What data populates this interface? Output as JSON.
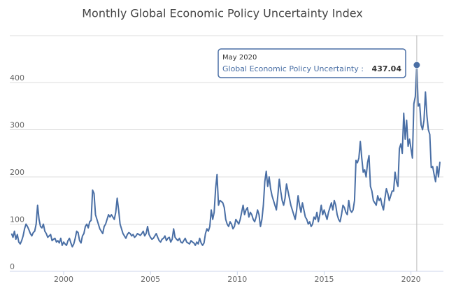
{
  "chart_data": {
    "type": "line",
    "title": "Monthly Global Economic Policy Uncertainty Index",
    "color": "#4a6fa5",
    "x": [
      "1997-01",
      "1997-02",
      "1997-03",
      "1997-04",
      "1997-05",
      "1997-06",
      "1997-07",
      "1997-08",
      "1997-09",
      "1997-10",
      "1997-11",
      "1997-12",
      "1998-01",
      "1998-02",
      "1998-03",
      "1998-04",
      "1998-05",
      "1998-06",
      "1998-07",
      "1998-08",
      "1998-09",
      "1998-10",
      "1998-11",
      "1998-12",
      "1999-01",
      "1999-02",
      "1999-03",
      "1999-04",
      "1999-05",
      "1999-06",
      "1999-07",
      "1999-08",
      "1999-09",
      "1999-10",
      "1999-11",
      "1999-12",
      "2000-01",
      "2000-02",
      "2000-03",
      "2000-04",
      "2000-05",
      "2000-06",
      "2000-07",
      "2000-08",
      "2000-09",
      "2000-10",
      "2000-11",
      "2000-12",
      "2001-01",
      "2001-02",
      "2001-03",
      "2001-04",
      "2001-05",
      "2001-06",
      "2001-07",
      "2001-08",
      "2001-09",
      "2001-10",
      "2001-11",
      "2001-12",
      "2002-01",
      "2002-02",
      "2002-03",
      "2002-04",
      "2002-05",
      "2002-06",
      "2002-07",
      "2002-08",
      "2002-09",
      "2002-10",
      "2002-11",
      "2002-12",
      "2003-01",
      "2003-02",
      "2003-03",
      "2003-04",
      "2003-05",
      "2003-06",
      "2003-07",
      "2003-08",
      "2003-09",
      "2003-10",
      "2003-11",
      "2003-12",
      "2004-01",
      "2004-02",
      "2004-03",
      "2004-04",
      "2004-05",
      "2004-06",
      "2004-07",
      "2004-08",
      "2004-09",
      "2004-10",
      "2004-11",
      "2004-12",
      "2005-01",
      "2005-02",
      "2005-03",
      "2005-04",
      "2005-05",
      "2005-06",
      "2005-07",
      "2005-08",
      "2005-09",
      "2005-10",
      "2005-11",
      "2005-12",
      "2006-01",
      "2006-02",
      "2006-03",
      "2006-04",
      "2006-05",
      "2006-06",
      "2006-07",
      "2006-08",
      "2006-09",
      "2006-10",
      "2006-11",
      "2006-12",
      "2007-01",
      "2007-02",
      "2007-03",
      "2007-04",
      "2007-05",
      "2007-06",
      "2007-07",
      "2007-08",
      "2007-09",
      "2007-10",
      "2007-11",
      "2007-12",
      "2008-01",
      "2008-02",
      "2008-03",
      "2008-04",
      "2008-05",
      "2008-06",
      "2008-07",
      "2008-08",
      "2008-09",
      "2008-10",
      "2008-11",
      "2008-12",
      "2009-01",
      "2009-02",
      "2009-03",
      "2009-04",
      "2009-05",
      "2009-06",
      "2009-07",
      "2009-08",
      "2009-09",
      "2009-10",
      "2009-11",
      "2009-12",
      "2010-01",
      "2010-02",
      "2010-03",
      "2010-04",
      "2010-05",
      "2010-06",
      "2010-07",
      "2010-08",
      "2010-09",
      "2010-10",
      "2010-11",
      "2010-12",
      "2011-01",
      "2011-02",
      "2011-03",
      "2011-04",
      "2011-05",
      "2011-06",
      "2011-07",
      "2011-08",
      "2011-09",
      "2011-10",
      "2011-11",
      "2011-12",
      "2012-01",
      "2012-02",
      "2012-03",
      "2012-04",
      "2012-05",
      "2012-06",
      "2012-07",
      "2012-08",
      "2012-09",
      "2012-10",
      "2012-11",
      "2012-12",
      "2013-01",
      "2013-02",
      "2013-03",
      "2013-04",
      "2013-05",
      "2013-06",
      "2013-07",
      "2013-08",
      "2013-09",
      "2013-10",
      "2013-11",
      "2013-12",
      "2014-01",
      "2014-02",
      "2014-03",
      "2014-04",
      "2014-05",
      "2014-06",
      "2014-07",
      "2014-08",
      "2014-09",
      "2014-10",
      "2014-11",
      "2014-12",
      "2015-01",
      "2015-02",
      "2015-03",
      "2015-04",
      "2015-05",
      "2015-06",
      "2015-07",
      "2015-08",
      "2015-09",
      "2015-10",
      "2015-11",
      "2015-12",
      "2016-01",
      "2016-02",
      "2016-03",
      "2016-04",
      "2016-05",
      "2016-06",
      "2016-07",
      "2016-08",
      "2016-09",
      "2016-10",
      "2016-11",
      "2016-12",
      "2017-01",
      "2017-02",
      "2017-03",
      "2017-04",
      "2017-05",
      "2017-06",
      "2017-07",
      "2017-08",
      "2017-09",
      "2017-10",
      "2017-11",
      "2017-12",
      "2018-01",
      "2018-02",
      "2018-03",
      "2018-04",
      "2018-05",
      "2018-06",
      "2018-07",
      "2018-08",
      "2018-09",
      "2018-10",
      "2018-11",
      "2018-12",
      "2019-01",
      "2019-02",
      "2019-03",
      "2019-04",
      "2019-05",
      "2019-06",
      "2019-07",
      "2019-08",
      "2019-09",
      "2019-10",
      "2019-11",
      "2019-12",
      "2020-01",
      "2020-02",
      "2020-03",
      "2020-04",
      "2020-05",
      "2020-06",
      "2020-07",
      "2020-08",
      "2020-09",
      "2020-10",
      "2020-11",
      "2020-12",
      "2021-01",
      "2021-02",
      "2021-03",
      "2021-04",
      "2021-05",
      "2021-06",
      "2021-07",
      "2021-08",
      "2021-09"
    ],
    "values": [
      80,
      72,
      85,
      68,
      78,
      62,
      58,
      65,
      75,
      90,
      100,
      95,
      88,
      80,
      75,
      82,
      85,
      100,
      140,
      110,
      95,
      92,
      100,
      85,
      80,
      72,
      75,
      78,
      65,
      68,
      70,
      62,
      65,
      60,
      70,
      55,
      62,
      58,
      55,
      65,
      70,
      60,
      52,
      58,
      70,
      85,
      82,
      65,
      60,
      75,
      80,
      95,
      100,
      92,
      105,
      108,
      172,
      165,
      120,
      110,
      100,
      90,
      85,
      80,
      95,
      100,
      110,
      120,
      115,
      120,
      115,
      110,
      125,
      155,
      130,
      100,
      90,
      80,
      75,
      70,
      78,
      82,
      80,
      75,
      78,
      72,
      75,
      80,
      78,
      76,
      80,
      85,
      75,
      80,
      95,
      78,
      72,
      68,
      70,
      75,
      80,
      72,
      65,
      62,
      68,
      70,
      75,
      65,
      70,
      72,
      62,
      68,
      90,
      72,
      68,
      65,
      70,
      62,
      60,
      65,
      70,
      62,
      60,
      58,
      65,
      62,
      60,
      55,
      62,
      58,
      70,
      60,
      55,
      60,
      80,
      90,
      85,
      95,
      130,
      110,
      125,
      175,
      205,
      140,
      150,
      148,
      145,
      135,
      110,
      100,
      95,
      105,
      100,
      90,
      95,
      110,
      105,
      100,
      110,
      125,
      140,
      120,
      130,
      135,
      115,
      125,
      120,
      110,
      105,
      115,
      130,
      120,
      95,
      110,
      140,
      190,
      212,
      180,
      200,
      175,
      160,
      150,
      140,
      130,
      160,
      195,
      170,
      150,
      140,
      155,
      185,
      170,
      155,
      140,
      130,
      120,
      110,
      130,
      160,
      140,
      125,
      145,
      130,
      115,
      110,
      100,
      105,
      95,
      100,
      115,
      110,
      125,
      105,
      120,
      140,
      120,
      130,
      120,
      110,
      125,
      135,
      145,
      130,
      150,
      140,
      120,
      110,
      105,
      120,
      140,
      135,
      125,
      120,
      150,
      130,
      125,
      130,
      150,
      235,
      230,
      240,
      275,
      240,
      210,
      215,
      200,
      230,
      245,
      180,
      170,
      150,
      145,
      140,
      160,
      150,
      155,
      140,
      130,
      155,
      175,
      165,
      150,
      160,
      170,
      170,
      210,
      190,
      180,
      260,
      270,
      250,
      335,
      280,
      320,
      265,
      280,
      260,
      240,
      355,
      370,
      437.04,
      350,
      355,
      310,
      300,
      320,
      380,
      330,
      300,
      290,
      220,
      222,
      205,
      190,
      222,
      200,
      232
    ],
    "xlim": [
      "1997-01",
      "2021-09"
    ],
    "xticks": [
      {
        "value": "2000-01",
        "label": "2000"
      },
      {
        "value": "2005-01",
        "label": "2005"
      },
      {
        "value": "2010-01",
        "label": "2010"
      },
      {
        "value": "2015-01",
        "label": "2015"
      },
      {
        "value": "2020-01",
        "label": "2020"
      }
    ],
    "ylim": [
      0,
      500
    ],
    "yticks": [
      0,
      100,
      200,
      300,
      400
    ],
    "grid": true,
    "tooltip": {
      "date": "May 2020",
      "label": "Global Economic Policy Uncertainty :",
      "value": 437.04
    }
  }
}
